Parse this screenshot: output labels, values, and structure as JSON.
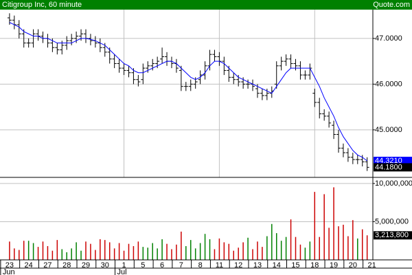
{
  "header": {
    "title": "Citigroup Inc, 60 minute",
    "source": "Quote.com"
  },
  "chart_data": [
    {
      "type": "ohlc",
      "color": "#000000",
      "last_label": "44.1800",
      "open": [
        47.45,
        47.4,
        47.3,
        47.1,
        46.9,
        46.9,
        47.1,
        47.05,
        47.0,
        46.9,
        46.8,
        46.75,
        46.85,
        46.95,
        47.0,
        47.05,
        47.1,
        47.0,
        46.95,
        46.9,
        46.8,
        46.7,
        46.55,
        46.45,
        46.35,
        46.3,
        46.25,
        46.1,
        46.1,
        46.35,
        46.4,
        46.45,
        46.55,
        46.6,
        46.5,
        46.45,
        46.3,
        45.95,
        45.95,
        46.0,
        46.1,
        46.2,
        46.4,
        46.65,
        46.6,
        46.5,
        46.3,
        46.15,
        46.1,
        46.05,
        46.0,
        46.0,
        45.9,
        45.8,
        45.75,
        45.8,
        46.0,
        46.4,
        46.5,
        46.55,
        46.45,
        46.4,
        46.2,
        46.2,
        45.8,
        45.6,
        45.35,
        45.3,
        45.1,
        44.9,
        44.6,
        44.5,
        44.4,
        44.35,
        44.35,
        44.3
      ],
      "high": [
        47.55,
        47.5,
        47.4,
        47.2,
        47.0,
        47.2,
        47.2,
        47.15,
        47.1,
        47.0,
        46.9,
        46.95,
        47.05,
        47.1,
        47.15,
        47.2,
        47.2,
        47.1,
        47.05,
        47.0,
        46.9,
        46.8,
        46.65,
        46.55,
        46.45,
        46.4,
        46.35,
        46.2,
        46.45,
        46.5,
        46.55,
        46.6,
        46.8,
        46.7,
        46.6,
        46.55,
        46.4,
        46.05,
        46.1,
        46.15,
        46.3,
        46.5,
        46.75,
        46.75,
        46.7,
        46.6,
        46.4,
        46.25,
        46.2,
        46.15,
        46.1,
        46.1,
        46.0,
        45.9,
        45.9,
        45.95,
        46.5,
        46.6,
        46.65,
        46.65,
        46.55,
        46.5,
        46.3,
        46.45,
        45.9,
        45.7,
        45.45,
        45.4,
        45.2,
        45.0,
        44.7,
        44.6,
        44.5,
        44.45,
        44.45,
        44.4
      ],
      "low": [
        47.3,
        47.2,
        47.0,
        46.8,
        46.8,
        46.8,
        46.95,
        46.9,
        46.8,
        46.7,
        46.65,
        46.65,
        46.75,
        46.85,
        46.9,
        46.95,
        46.9,
        46.85,
        46.8,
        46.7,
        46.6,
        46.45,
        46.35,
        46.25,
        46.2,
        46.15,
        46.0,
        45.95,
        46.0,
        46.25,
        46.3,
        46.35,
        46.45,
        46.4,
        46.35,
        46.25,
        45.85,
        45.85,
        45.85,
        45.9,
        46.0,
        46.1,
        46.3,
        46.5,
        46.4,
        46.2,
        46.05,
        46.0,
        45.95,
        45.9,
        45.9,
        45.85,
        45.7,
        45.65,
        45.65,
        45.7,
        45.9,
        46.3,
        46.4,
        46.35,
        46.3,
        46.1,
        46.1,
        46.1,
        45.5,
        45.25,
        45.2,
        45.05,
        44.8,
        44.5,
        44.4,
        44.3,
        44.25,
        44.25,
        44.2,
        44.1
      ],
      "close": [
        47.4,
        47.3,
        47.1,
        46.9,
        46.9,
        47.1,
        47.05,
        47.0,
        46.9,
        46.8,
        46.75,
        46.85,
        46.95,
        47.0,
        47.05,
        47.1,
        47.0,
        46.95,
        46.9,
        46.8,
        46.7,
        46.55,
        46.45,
        46.35,
        46.3,
        46.25,
        46.1,
        46.05,
        46.35,
        46.4,
        46.45,
        46.5,
        46.6,
        46.5,
        46.45,
        46.35,
        45.95,
        45.95,
        46.0,
        46.05,
        46.2,
        46.4,
        46.65,
        46.6,
        46.5,
        46.3,
        46.15,
        46.1,
        46.05,
        46.0,
        46.0,
        45.95,
        45.8,
        45.75,
        45.8,
        45.85,
        46.4,
        46.5,
        46.55,
        46.45,
        46.4,
        46.2,
        46.2,
        46.35,
        45.6,
        45.35,
        45.3,
        45.15,
        44.9,
        44.6,
        44.5,
        44.4,
        44.35,
        44.35,
        44.3,
        44.18
      ],
      "overlay": {
        "type": "line",
        "color": "#0000ff",
        "last_label": "44.3210",
        "values": [
          47.35,
          47.3,
          47.25,
          47.15,
          47.1,
          47.05,
          47.05,
          47.0,
          47.0,
          46.95,
          46.9,
          46.9,
          46.9,
          46.9,
          46.95,
          47.0,
          47.0,
          46.98,
          46.95,
          46.9,
          46.85,
          46.75,
          46.65,
          46.55,
          46.45,
          46.4,
          46.3,
          46.25,
          46.25,
          46.3,
          46.35,
          46.4,
          46.45,
          46.5,
          46.5,
          46.45,
          46.35,
          46.25,
          46.15,
          46.1,
          46.15,
          46.25,
          46.4,
          46.5,
          46.5,
          46.45,
          46.35,
          46.25,
          46.15,
          46.1,
          46.05,
          46.0,
          45.95,
          45.9,
          45.85,
          45.8,
          45.95,
          46.1,
          46.25,
          46.35,
          46.35,
          46.35,
          46.35,
          46.35,
          46.15,
          45.95,
          45.7,
          45.5,
          45.3,
          45.05,
          44.85,
          44.7,
          44.55,
          44.45,
          44.4,
          44.321
        ]
      },
      "xlim": [
        -2,
        76.2
      ],
      "ylim": [
        43.96,
        47.63
      ],
      "yticks": [
        {
          "value": 45,
          "label": "45.0000"
        },
        {
          "value": 46,
          "label": "46.0000"
        },
        {
          "value": 47,
          "label": "47.0000"
        }
      ],
      "grid": true,
      "xgrid": [
        24,
        44,
        64
      ]
    },
    {
      "type": "bar",
      "up_color": "#008000",
      "down_color": "#cc0000",
      "last_label": "3,213,800",
      "values": [
        2400000,
        1500000,
        1300000,
        2500000,
        2500000,
        2200000,
        1700000,
        2400000,
        1800000,
        1200000,
        2600000,
        1400000,
        1000000,
        1500000,
        2300000,
        1200000,
        2400000,
        2100000,
        1300000,
        2700000,
        2600000,
        2300000,
        1500000,
        2200000,
        1200000,
        2100000,
        1800000,
        2400000,
        1700000,
        1600000,
        2200000,
        1500000,
        2700000,
        2100000,
        1400000,
        2000000,
        3700000,
        1800000,
        2600000,
        1500000,
        2200000,
        3400000,
        2700000,
        1400000,
        2800000,
        2300000,
        2100000,
        1200000,
        1600000,
        2300000,
        2900000,
        1400000,
        2400000,
        1700000,
        3100000,
        4700000,
        3500000,
        2500000,
        3000000,
        5300000,
        3000000,
        2000000,
        1600000,
        2400000,
        8900000,
        3000000,
        8600000,
        4200000,
        9500000,
        4400000,
        4600000,
        3100000,
        5200000,
        2800000,
        4000000,
        3213800
      ],
      "xlim": [
        -2,
        76.2
      ],
      "ylim": [
        0,
        10800000
      ],
      "yticks": [
        {
          "value": 5000000,
          "label": "5,000,000"
        },
        {
          "value": 10000000,
          "label": "10,000,000"
        }
      ],
      "xticks": [
        {
          "value": 0,
          "label": "23"
        },
        {
          "value": 4,
          "label": "24"
        },
        {
          "value": 8,
          "label": "27"
        },
        {
          "value": 12,
          "label": "28"
        },
        {
          "value": 16,
          "label": "29"
        },
        {
          "value": 20,
          "label": "30"
        },
        {
          "value": 24,
          "label": "1"
        },
        {
          "value": 28,
          "label": "5"
        },
        {
          "value": 32,
          "label": "6"
        },
        {
          "value": 36,
          "label": "7"
        },
        {
          "value": 40,
          "label": "8"
        },
        {
          "value": 44,
          "label": "11"
        },
        {
          "value": 48,
          "label": "12"
        },
        {
          "value": 52,
          "label": "13"
        },
        {
          "value": 56,
          "label": "14"
        },
        {
          "value": 60,
          "label": "15"
        },
        {
          "value": 64,
          "label": "18"
        },
        {
          "value": 68,
          "label": "19"
        },
        {
          "value": 72,
          "label": "20"
        },
        {
          "value": 76,
          "label": "21"
        }
      ],
      "months": [
        {
          "value": 0,
          "label": "Jun"
        },
        {
          "value": 24,
          "label": "Jul"
        }
      ],
      "grid": true
    }
  ]
}
